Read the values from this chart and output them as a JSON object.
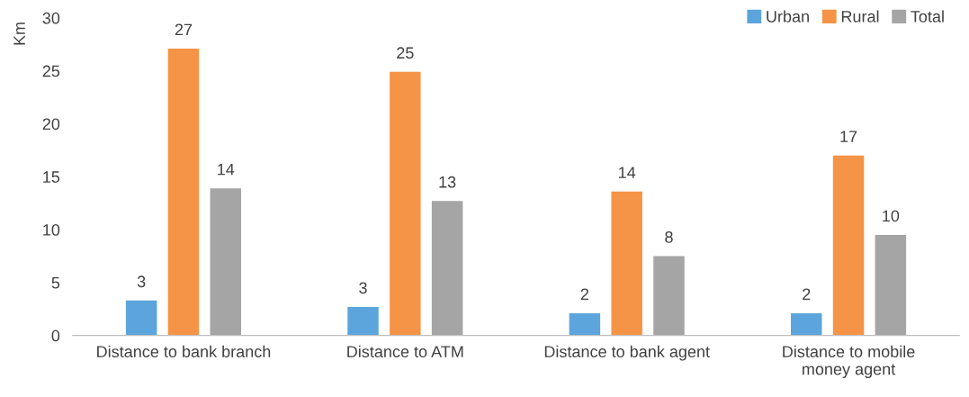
{
  "chart_data": {
    "type": "bar",
    "ylabel": "Km",
    "categories": [
      "Distance to bank branch",
      "Distance to ATM",
      "Distance to bank agent",
      "Distance to mobile money agent"
    ],
    "series": [
      {
        "name": "Urban",
        "color": "#5ca5dc",
        "values": [
          3.3,
          2.7,
          2.1,
          2.1
        ],
        "value_labels": [
          "3",
          "3",
          "2",
          "2"
        ]
      },
      {
        "name": "Rural",
        "color": "#f59446",
        "values": [
          27.1,
          24.9,
          13.6,
          17.0
        ],
        "value_labels": [
          "27",
          "25",
          "14",
          "17"
        ]
      },
      {
        "name": "Total",
        "color": "#a5a5a5",
        "values": [
          13.9,
          12.7,
          7.5,
          9.5
        ],
        "value_labels": [
          "14",
          "13",
          "8",
          "10"
        ]
      }
    ],
    "ylim": [
      0,
      30
    ],
    "yticks": [
      0,
      5,
      10,
      15,
      20,
      25,
      30
    ],
    "grid": false,
    "legend": "top right"
  }
}
